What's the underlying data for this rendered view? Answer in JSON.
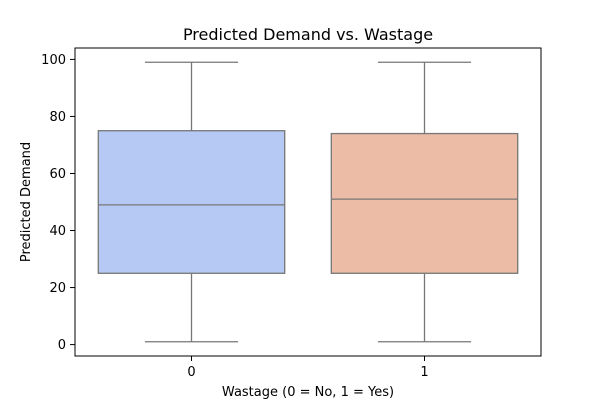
{
  "chart_data": {
    "type": "box",
    "title": "Predicted Demand vs. Wastage",
    "xlabel": "Wastage (0 = No, 1 = Yes)",
    "ylabel": "Predicted Demand",
    "categories": [
      "0",
      "1"
    ],
    "boxes": [
      {
        "category": "0",
        "whisker_low": 1,
        "q1": 25,
        "median": 49,
        "q3": 75,
        "whisker_high": 99,
        "color": "#b5c9f4"
      },
      {
        "category": "1",
        "whisker_low": 1,
        "q1": 25,
        "median": 51,
        "q3": 74,
        "whisker_high": 99,
        "color": "#ecbca6"
      }
    ],
    "ylim": [
      -4,
      104
    ],
    "yticks": [
      0,
      20,
      40,
      60,
      80,
      100
    ],
    "grid": false,
    "line_color": "#777777"
  }
}
